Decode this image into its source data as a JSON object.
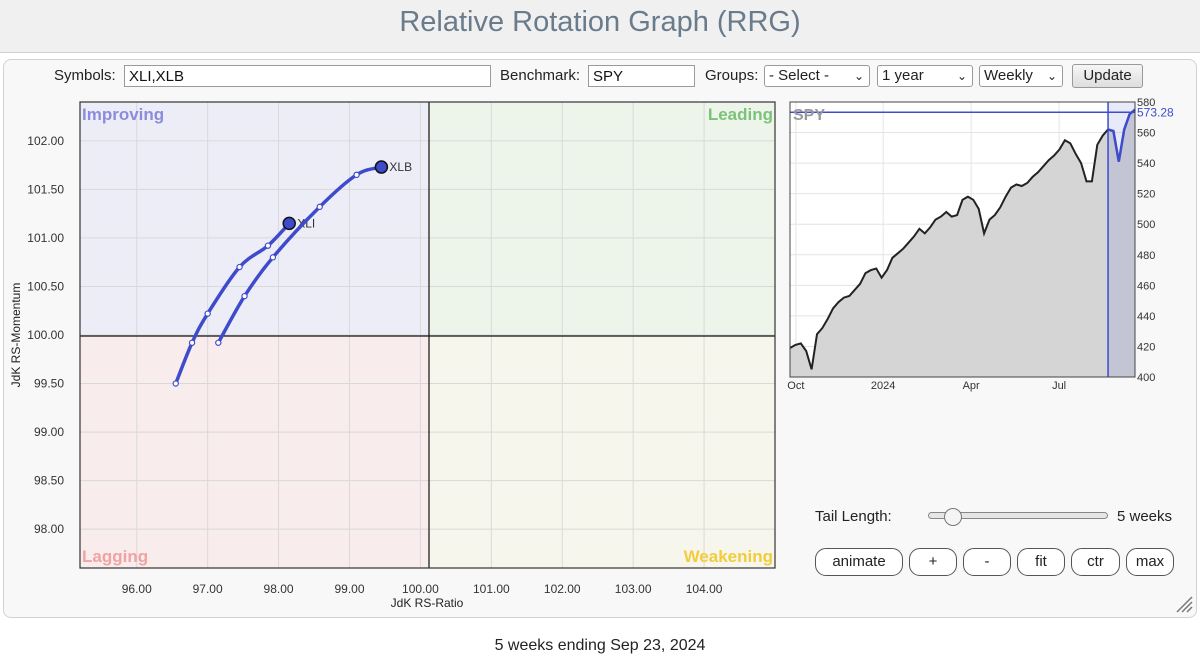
{
  "page": {
    "title": "Relative Rotation Graph (RRG)",
    "footer": "5 weeks ending Sep 23, 2024"
  },
  "controls": {
    "symbols_label": "Symbols:",
    "symbols_value": "XLI,XLB",
    "benchmark_label": "Benchmark:",
    "benchmark_value": "SPY",
    "groups_label": "Groups:",
    "groups_selected": "- Select -",
    "period_selected": "1 year",
    "frequency_selected": "Weekly",
    "update_label": "Update"
  },
  "rrg": {
    "quadrants": {
      "improving": "Improving",
      "leading": "Leading",
      "lagging": "Lagging",
      "weakening": "Weakening"
    },
    "quadrant_colors": {
      "improving_bg": "#ededf8",
      "improving_text": "#8c8cdc",
      "leading_bg": "#edf5ea",
      "leading_text": "#7cc27a",
      "lagging_bg": "#f8ecec",
      "lagging_text": "#f0a3a3",
      "weakening_bg": "#f7f6ec",
      "weakening_text": "#f2cc3a"
    },
    "xlabel": "JdK RS-Ratio",
    "ylabel": "JdK RS-Momentum",
    "x_ticks": [
      "96.00",
      "97.00",
      "98.00",
      "99.00",
      "100.00",
      "101.00",
      "102.00",
      "103.00",
      "104.00"
    ],
    "y_ticks": [
      "102.00",
      "101.50",
      "101.00",
      "100.50",
      "100.00",
      "99.50",
      "99.00",
      "98.50",
      "98.00"
    ],
    "series_color": "#3e4ccc"
  },
  "benchmark_chart": {
    "name": "SPY",
    "last_value": "573.28",
    "y_ticks": [
      "580",
      "560",
      "540",
      "520",
      "500",
      "480",
      "460",
      "440",
      "420",
      "400"
    ],
    "x_ticks": [
      "Oct",
      "2024",
      "Apr",
      "Jul"
    ]
  },
  "tail": {
    "label": "Tail Length:",
    "value_text": "5 weeks",
    "weeks": 5,
    "max_weeks": 52
  },
  "buttons": {
    "animate": "animate",
    "plus": "+",
    "minus": "-",
    "fit": "fit",
    "ctr": "ctr",
    "max": "max"
  },
  "chart_data": [
    {
      "type": "scatter",
      "xlabel": "JdK RS-Ratio",
      "ylabel": "JdK RS-Momentum",
      "xlim": [
        95.2,
        105.0
      ],
      "ylim": [
        97.6,
        102.4
      ],
      "grid": true,
      "series": [
        {
          "name": "XLI",
          "x": [
            96.55,
            96.78,
            97.0,
            97.45,
            97.85,
            98.15
          ],
          "y": [
            99.5,
            99.92,
            100.22,
            100.7,
            100.92,
            101.15
          ]
        },
        {
          "name": "XLB",
          "x": [
            97.15,
            97.52,
            97.92,
            98.58,
            99.1,
            99.45
          ],
          "y": [
            99.92,
            100.4,
            100.8,
            101.32,
            101.65,
            101.73
          ]
        }
      ]
    },
    {
      "type": "line",
      "title": "SPY",
      "ylim": [
        400,
        580
      ],
      "x_labels": [
        "Oct",
        "2024",
        "Apr",
        "Jul"
      ],
      "y": [
        419,
        421,
        422,
        417,
        405,
        428,
        432,
        438,
        445,
        449,
        452,
        453,
        457,
        461,
        468,
        470,
        471,
        465,
        470,
        478,
        481,
        484,
        488,
        492,
        497,
        494,
        498,
        503,
        505,
        508,
        505,
        506,
        516,
        518,
        516,
        510,
        494,
        503,
        506,
        511,
        518,
        524,
        526,
        525,
        527,
        531,
        534,
        538,
        542,
        545,
        549,
        555,
        553,
        546,
        540,
        528,
        528,
        552,
        558,
        562,
        561,
        541,
        562,
        572,
        575
      ]
    }
  ]
}
